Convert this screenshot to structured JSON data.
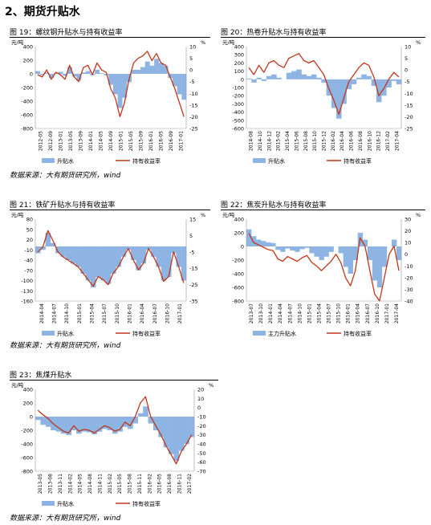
{
  "section_title": "2、期货升贴水",
  "figures": [
    {
      "title": "图 19：螺纹钢升贴水与持有收益率",
      "source": "数据来源：大有期货研究所，wind",
      "left_unit": "元/吨",
      "right_unit": "%",
      "left_ticks": [
        "400",
        "200",
        "0",
        "-200",
        "-400",
        "-600",
        "-800"
      ],
      "right_ticks": [
        "10",
        "5",
        "0",
        "-5",
        "-10",
        "-15",
        "-20",
        "-25"
      ],
      "x_ticks": [
        "2012-05",
        "2012-09",
        "2013-01",
        "2013-05",
        "2013-09",
        "2014-01",
        "2014-05",
        "2014-09",
        "2015-01",
        "2015-05",
        "2015-09",
        "2016-01",
        "2016-05",
        "2016-09",
        "2017-01"
      ],
      "legend_bar": "升贴水",
      "legend_line": "持有收益率"
    },
    {
      "title": "图 20：热卷升贴水与持有收益率",
      "source": "",
      "left_unit": "元/吨",
      "right_unit": "%",
      "left_ticks": [
        "400",
        "300",
        "200",
        "100",
        "0",
        "-100",
        "-200",
        "-300",
        "-400",
        "-500",
        "-600"
      ],
      "right_ticks": [
        "10",
        "5",
        "0",
        "-5",
        "-10",
        "-15",
        "-20",
        "-25"
      ],
      "x_ticks": [
        "2014-08",
        "2014-10",
        "2014-12",
        "2015-02",
        "2015-04",
        "2015-06",
        "2015-08",
        "2015-10",
        "2015-12",
        "2016-02",
        "2016-04",
        "2016-06",
        "2016-08",
        "2016-10",
        "2016-12",
        "2017-02",
        "2017-04"
      ],
      "legend_bar": "升贴水",
      "legend_line": "持有收益率"
    },
    {
      "title": "图 21：铁矿升贴水与持有收益率",
      "source": "数据来源：大有期货研究所，wind",
      "left_unit": "元/吨",
      "right_unit": "%",
      "left_ticks": [
        "80",
        "50",
        "20",
        "-10",
        "-40",
        "-70",
        "-100",
        "-130",
        "-160"
      ],
      "right_ticks": [
        "15",
        "5",
        "-5",
        "-15",
        "-25",
        "-35"
      ],
      "x_ticks": [
        "2014-04",
        "2014-07",
        "2014-10",
        "2015-01",
        "2015-04",
        "2015-07",
        "2015-10",
        "2016-01",
        "2016-04",
        "2016-07",
        "2016-10",
        "2017-01"
      ],
      "legend_bar": "升贴水",
      "legend_line": "持有收益率"
    },
    {
      "title": "图 22：焦炭升贴水与持有收益率",
      "source": "",
      "left_unit": "元/吨",
      "right_unit": "%",
      "left_ticks": [
        "400",
        "200",
        "0",
        "-200",
        "-400",
        "-600",
        "-800"
      ],
      "right_ticks": [
        "30",
        "20",
        "10",
        "0",
        "-10",
        "-20",
        "-30",
        "-40"
      ],
      "x_ticks": [
        "2013-07",
        "2013-10",
        "2014-01",
        "2014-04",
        "2014-07",
        "2014-10",
        "2015-01",
        "2015-04",
        "2015-07",
        "2015-10",
        "2016-01",
        "2016-04",
        "2016-07",
        "2016-10",
        "2017-01",
        "2017-04"
      ],
      "legend_bar": "主力升贴水",
      "legend_line": "持有收益率"
    },
    {
      "title": "图 23：焦煤升贴水",
      "source": "数据来源：大有期货研究所，wind",
      "left_unit": "元/吨",
      "right_unit": "%",
      "left_ticks": [
        "400",
        "200",
        "0",
        "-200",
        "-400",
        "-600",
        "-800"
      ],
      "right_ticks": [
        "20",
        "10",
        "0",
        "-10",
        "-20",
        "-30",
        "-40",
        "-50",
        "-60",
        "-70"
      ],
      "x_ticks": [
        "2013-05",
        "2013-08",
        "2013-11",
        "2014-02",
        "2014-05",
        "2014-08",
        "2014-11",
        "2015-02",
        "2015-05",
        "2015-08",
        "2015-11",
        "2016-02",
        "2016-05",
        "2016-08",
        "2016-11",
        "2017-02"
      ],
      "legend_bar": "升贴水",
      "legend_line": "持有收益率"
    }
  ],
  "colors": {
    "bar": "#8db4e2",
    "line": "#c0361a",
    "text": "#000000"
  },
  "chart_data": [
    {
      "type": "bar+line",
      "title": "图 19：螺纹钢升贴水与持有收益率",
      "ylim": [
        -800,
        400
      ],
      "y2lim": [
        -25,
        10
      ],
      "series": [
        {
          "name": "升贴水",
          "values": [
            40,
            -20,
            20,
            -60,
            10,
            30,
            -30,
            100,
            -40,
            -100,
            20,
            40,
            -20,
            60,
            10,
            -20,
            -160,
            -300,
            -500,
            -350,
            -120,
            60,
            60,
            100,
            180,
            120,
            220,
            160,
            120,
            -60,
            -180,
            -300,
            -380
          ]
        },
        {
          "name": "持有收益率",
          "values": [
            -2,
            -3,
            0,
            -4,
            -1,
            -2,
            -4,
            2,
            -3,
            -5,
            1,
            2,
            -2,
            3,
            0,
            -1,
            -8,
            -12,
            -20,
            -14,
            -4,
            3,
            5,
            6,
            8,
            4,
            7,
            3,
            2,
            -3,
            -8,
            -14,
            -20
          ]
        }
      ]
    },
    {
      "type": "bar+line",
      "title": "图 20：热卷升贴水与持有收益率",
      "ylim": [
        -600,
        400
      ],
      "y2lim": [
        -25,
        10
      ],
      "series": [
        {
          "name": "升贴水",
          "values": [
            10,
            -40,
            20,
            -20,
            40,
            60,
            20,
            0,
            80,
            100,
            120,
            60,
            40,
            60,
            20,
            -40,
            -200,
            -350,
            -480,
            -300,
            -120,
            -60,
            20,
            60,
            40,
            -80,
            -280,
            -200,
            -100,
            -20,
            -60
          ]
        },
        {
          "name": "持有收益率",
          "values": [
            1,
            -2,
            2,
            -1,
            3,
            4,
            2,
            1,
            5,
            6,
            7,
            4,
            3,
            4,
            1,
            -2,
            -8,
            -13,
            -19,
            -12,
            -5,
            -2,
            1,
            3,
            2,
            -3,
            -11,
            -8,
            -4,
            -1,
            -3
          ]
        }
      ]
    },
    {
      "type": "bar+line",
      "title": "图 21：铁矿升贴水与持有收益率",
      "ylim": [
        -160,
        80
      ],
      "y2lim": [
        -35,
        15
      ],
      "series": [
        {
          "name": "升贴水",
          "values": [
            -20,
            -10,
            40,
            10,
            -20,
            -30,
            -40,
            -50,
            -60,
            -80,
            -100,
            -120,
            -90,
            -100,
            -110,
            -80,
            -60,
            -30,
            -10,
            -40,
            -70,
            -50,
            -10,
            -30,
            -60,
            -100,
            -90,
            -20,
            -60,
            -100
          ]
        },
        {
          "name": "持有收益率",
          "values": [
            -5,
            -2,
            8,
            2,
            -5,
            -8,
            -10,
            -12,
            -14,
            -18,
            -22,
            -26,
            -20,
            -22,
            -25,
            -18,
            -14,
            -8,
            -3,
            -10,
            -16,
            -12,
            -3,
            -8,
            -14,
            -23,
            -20,
            -5,
            -14,
            -24
          ]
        }
      ]
    },
    {
      "type": "bar+line",
      "title": "图 22：焦炭升贴水与持有收益率",
      "ylim": [
        -800,
        400
      ],
      "y2lim": [
        -40,
        30
      ],
      "series": [
        {
          "name": "主力升贴水",
          "values": [
            250,
            150,
            100,
            80,
            60,
            50,
            -50,
            -80,
            -30,
            -60,
            -80,
            -40,
            -20,
            -100,
            -150,
            -200,
            -150,
            -80,
            0,
            -100,
            -300,
            -400,
            -200,
            200,
            100,
            -200,
            -500,
            -600,
            -300,
            0,
            100,
            -200
          ]
        },
        {
          "name": "持有收益率",
          "values": [
            18,
            10,
            8,
            6,
            4,
            3,
            -4,
            -6,
            -2,
            -4,
            -6,
            -3,
            -1,
            -7,
            -10,
            -14,
            -10,
            -6,
            0,
            -7,
            -20,
            -27,
            -14,
            14,
            7,
            -14,
            -34,
            -40,
            -20,
            0,
            7,
            -14
          ]
        }
      ]
    },
    {
      "type": "bar+line",
      "title": "图 23：焦煤升贴水",
      "ylim": [
        -800,
        400
      ],
      "y2lim": [
        -70,
        20
      ],
      "series": [
        {
          "name": "升贴水",
          "values": [
            -50,
            -120,
            -150,
            -200,
            -220,
            -250,
            -270,
            -200,
            -250,
            -220,
            -230,
            -260,
            -220,
            -180,
            -200,
            -250,
            -220,
            -150,
            -180,
            -100,
            50,
            150,
            -100,
            -200,
            -300,
            -450,
            -550,
            -650,
            -500,
            -400,
            -300
          ]
        },
        {
          "name": "持有收益率",
          "values": [
            -3,
            -8,
            -12,
            -18,
            -22,
            -26,
            -28,
            -20,
            -26,
            -24,
            -25,
            -28,
            -24,
            -20,
            -22,
            -26,
            -24,
            -16,
            -20,
            -10,
            5,
            12,
            -10,
            -20,
            -30,
            -42,
            -52,
            -62,
            -48,
            -40,
            -30
          ]
        }
      ]
    }
  ]
}
